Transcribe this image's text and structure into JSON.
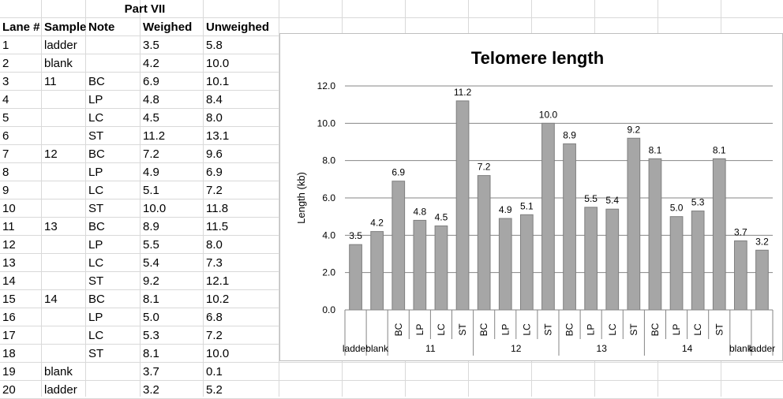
{
  "sheet": {
    "title": "Part VII",
    "headers": [
      "Lane #",
      "Sample",
      "Note",
      "Weighed",
      "Unweighed"
    ],
    "rows": [
      [
        "1",
        "ladder",
        "",
        "3.5",
        "5.8"
      ],
      [
        "2",
        "blank",
        "",
        "4.2",
        "10.0"
      ],
      [
        "3",
        "11",
        "BC",
        "6.9",
        "10.1"
      ],
      [
        "4",
        "",
        "LP",
        "4.8",
        "8.4"
      ],
      [
        "5",
        "",
        "LC",
        "4.5",
        "8.0"
      ],
      [
        "6",
        "",
        "ST",
        "11.2",
        "13.1"
      ],
      [
        "7",
        "12",
        "BC",
        "7.2",
        "9.6"
      ],
      [
        "8",
        "",
        "LP",
        "4.9",
        "6.9"
      ],
      [
        "9",
        "",
        "LC",
        "5.1",
        "7.2"
      ],
      [
        "10",
        "",
        "ST",
        "10.0",
        "11.8"
      ],
      [
        "11",
        "13",
        "BC",
        "8.9",
        "11.5"
      ],
      [
        "12",
        "",
        "LP",
        "5.5",
        "8.0"
      ],
      [
        "13",
        "",
        "LC",
        "5.4",
        "7.3"
      ],
      [
        "14",
        "",
        "ST",
        "9.2",
        "12.1"
      ],
      [
        "15",
        "14",
        "BC",
        "8.1",
        "10.2"
      ],
      [
        "16",
        "",
        "LP",
        "5.0",
        "6.8"
      ],
      [
        "17",
        "",
        "LC",
        "5.3",
        "7.2"
      ],
      [
        "18",
        "",
        "ST",
        "8.1",
        "10.0"
      ],
      [
        "19",
        "blank",
        "",
        "3.7",
        "0.1"
      ],
      [
        "20",
        "ladder",
        "",
        "3.2",
        "5.2"
      ]
    ]
  },
  "chart_data": {
    "type": "bar",
    "title": "Telomere length",
    "xlabel": "",
    "ylabel": "Length (kb)",
    "ylim": [
      0,
      12
    ],
    "yticks": [
      "0.0",
      "2.0",
      "4.0",
      "6.0",
      "8.0",
      "10.0",
      "12.0"
    ],
    "categories": [
      "",
      "",
      "BC",
      "LP",
      "LC",
      "ST",
      "BC",
      "LP",
      "LC",
      "ST",
      "BC",
      "LP",
      "LC",
      "ST",
      "BC",
      "LP",
      "LC",
      "ST",
      "",
      ""
    ],
    "groups": [
      {
        "label": "ladder",
        "count": 1
      },
      {
        "label": "blank",
        "count": 1
      },
      {
        "label": "11",
        "count": 4
      },
      {
        "label": "12",
        "count": 4
      },
      {
        "label": "13",
        "count": 4
      },
      {
        "label": "14",
        "count": 4
      },
      {
        "label": "blank",
        "count": 1
      },
      {
        "label": "ladder",
        "count": 1
      }
    ],
    "values": [
      3.5,
      4.2,
      6.9,
      4.8,
      4.5,
      11.2,
      7.2,
      4.9,
      5.1,
      10.0,
      8.9,
      5.5,
      5.4,
      9.2,
      8.1,
      5.0,
      5.3,
      8.1,
      3.7,
      3.2
    ],
    "data_labels": [
      "3.5",
      "4.2",
      "6.9",
      "4.8",
      "4.5",
      "11.2",
      "7.2",
      "4.9",
      "5.1",
      "10.0",
      "8.9",
      "5.5",
      "5.4",
      "9.2",
      "8.1",
      "5.0",
      "5.3",
      "8.1",
      "3.7",
      "3.2"
    ],
    "bar_color": "#a6a6a6",
    "bar_border": "#7f7f7f",
    "grid": true
  }
}
